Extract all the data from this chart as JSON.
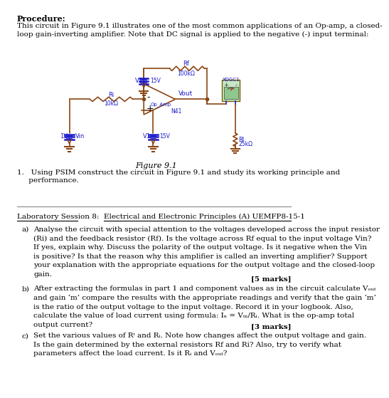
{
  "title": "Procedure:",
  "intro_text": "This circuit in Figure 9.1 illustrates one of the most common applications of an Op-amp, a closed-\nloop gain-inverting amplifier. Note that DC signal is applied to the negative (-) input terminal:",
  "figure_caption": "Figure 9.1",
  "header_left": "Laboratory Session 8:",
  "header_right": "Electrical and Electronic Principles (A) UEMFP8-15-1",
  "bg_color": "#ffffff",
  "text_color": "#000000",
  "circuit_color": "#8B4513",
  "circuit_blue": "#1a1acd",
  "line_width": 1.2
}
